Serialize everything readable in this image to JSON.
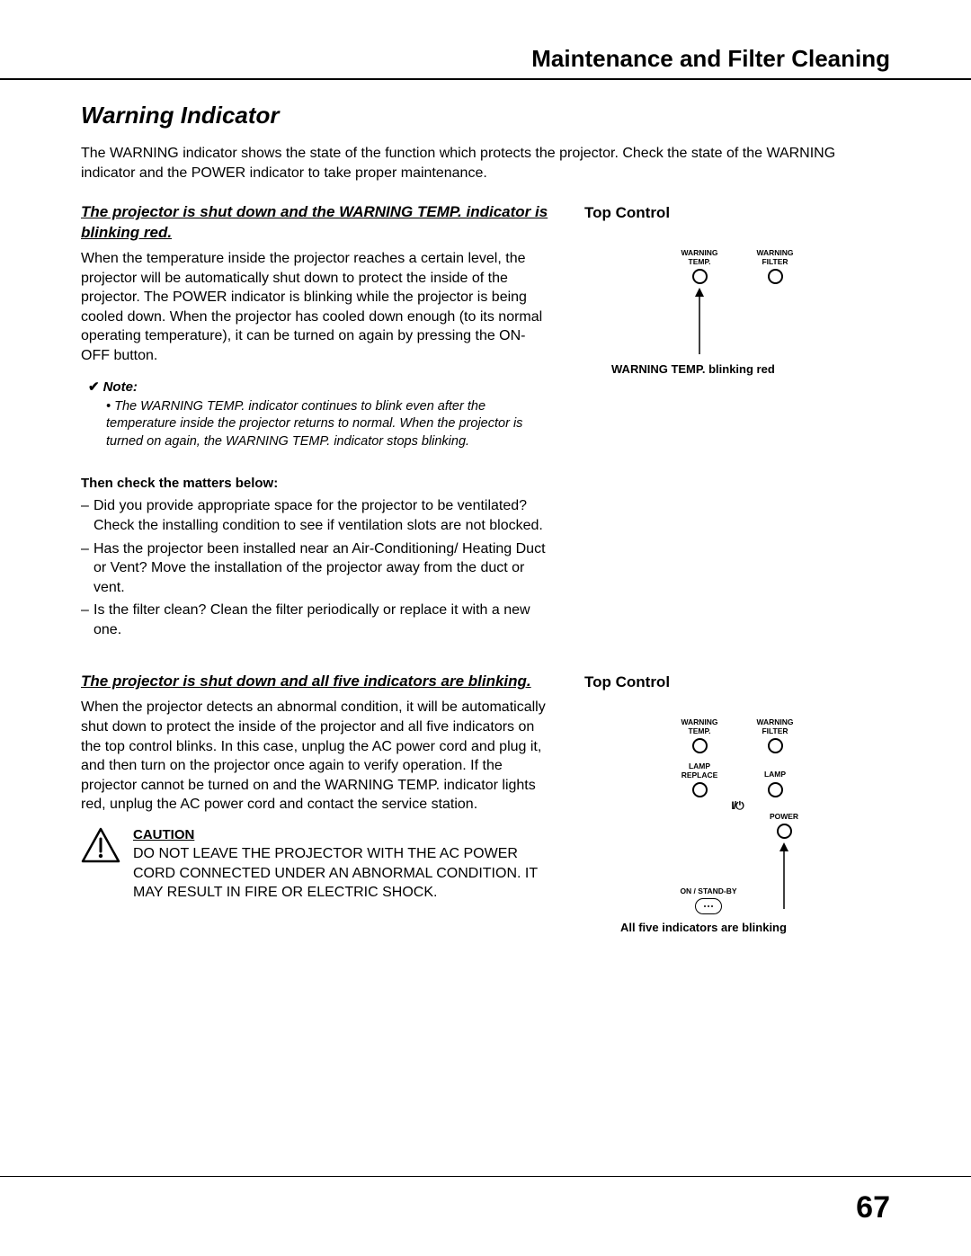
{
  "chapter_title": "Maintenance and Filter Cleaning",
  "section_title": "Warning Indicator",
  "intro": "The WARNING indicator shows the state of the function which protects the projector. Check the state of the WARNING indicator and the POWER indicator to take proper maintenance.",
  "block1": {
    "heading": "The projector is shut down and the WARNING TEMP. indicator is blinking red.",
    "body": "When the temperature inside the projector reaches a certain level, the projector will be automatically shut down to protect the inside of the projector. The POWER indicator is blinking while the projector is being cooled down. When the projector has cooled down enough (to its normal operating temperature), it can be turned on again by pressing the ON-OFF button.",
    "note_label": "Note:",
    "note_body": "• The WARNING TEMP. indicator continues to blink even after the temperature inside the projector returns to normal. When the projector is turned on again, the WARNING  TEMP. indicator stops blinking.",
    "matters_head": "Then check the matters below:",
    "matters": [
      "Did you provide appropriate space for the projector to be ventilated? Check the installing condition to see if ventilation slots are not blocked.",
      "Has the projector been installed near an Air-Conditioning/ Heating Duct or Vent? Move the installation of the projector away from the duct or vent.",
      "Is the filter clean? Clean the filter periodically or replace it with a new one."
    ]
  },
  "block2": {
    "heading": "The projector is shut down and all five indicators are blinking.",
    "body": "When the projector detects an abnormal condition, it will be automatically shut down to protect the inside of the projector and all five indicators on the top control blinks. In this case, unplug the AC power cord and plug it, and then turn on the projector once again to verify operation. If the projector cannot be turned on and the WARNING TEMP. indicator lights red, unplug the AC power cord and contact the service station.",
    "caution_head": "CAUTION",
    "caution_body": "DO NOT LEAVE THE PROJECTOR WITH THE AC POWER CORD CONNECTED UNDER AN ABNORMAL CONDITION. IT MAY RESULT IN FIRE OR ELECTRIC SHOCK."
  },
  "right1": {
    "title": "Top Control",
    "labels": {
      "temp": "WARNING\nTEMP.",
      "filter": "WARNING\nFILTER"
    },
    "caption": "WARNING TEMP. blinking red"
  },
  "right2": {
    "title": "Top Control",
    "labels": {
      "temp": "WARNING\nTEMP.",
      "filter": "WARNING\nFILTER",
      "lamp_replace": "LAMP\nREPLACE",
      "lamp": "LAMP",
      "standby": "ON / STAND-BY",
      "power": "POWER"
    },
    "caption": "All five indicators are blinking"
  },
  "page_number": "67"
}
